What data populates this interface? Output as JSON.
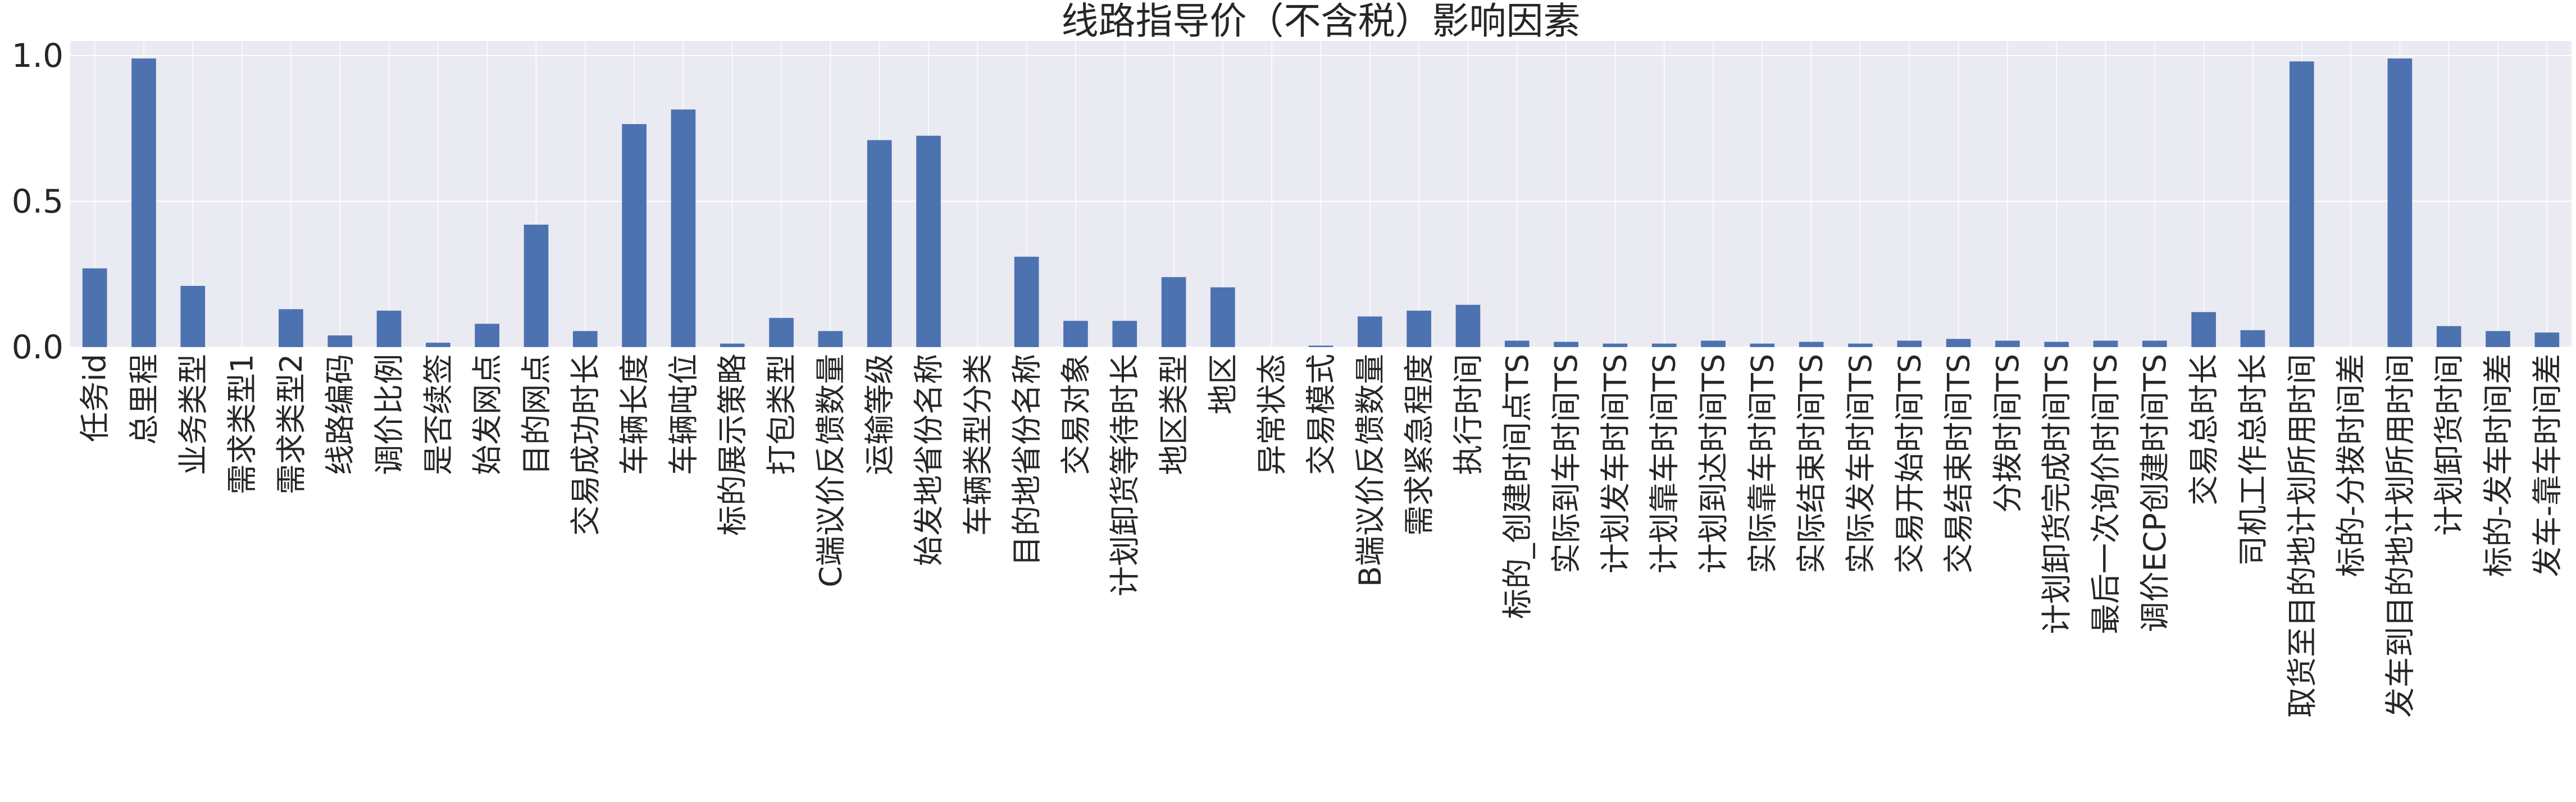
{
  "chart_data": {
    "type": "bar",
    "title": "线路指导价（不含税）影响因素",
    "xlabel": "",
    "ylabel": "",
    "ylim": [
      0,
      1.05
    ],
    "yticks": [
      0.0,
      0.5,
      1.0
    ],
    "ytick_labels": [
      "0.0",
      "0.5",
      "1.0"
    ],
    "grid": true,
    "bar_color": "#4c72b0",
    "background_color": "#eaeaf2",
    "categories": [
      "任务id",
      "总里程",
      "业务类型",
      "需求类型1",
      "需求类型2",
      "线路编码",
      "调价比例",
      "是否续签",
      "始发网点",
      "目的网点",
      "交易成功时长",
      "车辆长度",
      "车辆吨位",
      "标的展示策略",
      "打包类型",
      "C端议价反馈数量",
      "运输等级",
      "始发地省份名称",
      "车辆类型分类",
      "目的地省份名称",
      "交易对象",
      "计划卸货等待时长",
      "地区类型",
      "地区",
      "异常状态",
      "交易模式",
      "B端议价反馈数量",
      "需求紧急程度",
      "执行时间",
      "标的_创建时间点TS",
      "实际到车时间TS",
      "计划发车时间TS",
      "计划靠车时间TS",
      "计划到达时间TS",
      "实际靠车时间TS",
      "实际结束时间TS",
      "实际发车时间TS",
      "交易开始时间TS",
      "交易结束时间TS",
      "分拨时间TS",
      "计划卸货完成时间TS",
      "最后一次询价时间TS",
      "调价ECP创建时间TS",
      "交易总时长",
      "司机工作总时长",
      "取货至目的地计划所用时间",
      "标的-分拨时间差",
      "发车到目的地计划所用时间",
      "计划卸货时间",
      "标的-发车时间差",
      "发车-靠车时间差"
    ],
    "values": [
      0.27,
      0.99,
      0.21,
      0.0,
      0.13,
      0.04,
      0.125,
      0.015,
      0.08,
      0.42,
      0.055,
      0.765,
      0.815,
      0.012,
      0.1,
      0.055,
      0.71,
      0.725,
      0.0,
      0.31,
      0.09,
      0.09,
      0.24,
      0.205,
      0.0,
      0.005,
      0.105,
      0.125,
      0.145,
      0.022,
      0.018,
      0.012,
      0.012,
      0.022,
      0.012,
      0.018,
      0.012,
      0.022,
      0.028,
      0.022,
      0.018,
      0.022,
      0.022,
      0.12,
      0.058,
      0.98,
      0.0,
      0.99,
      0.072,
      0.055,
      0.05
    ]
  }
}
